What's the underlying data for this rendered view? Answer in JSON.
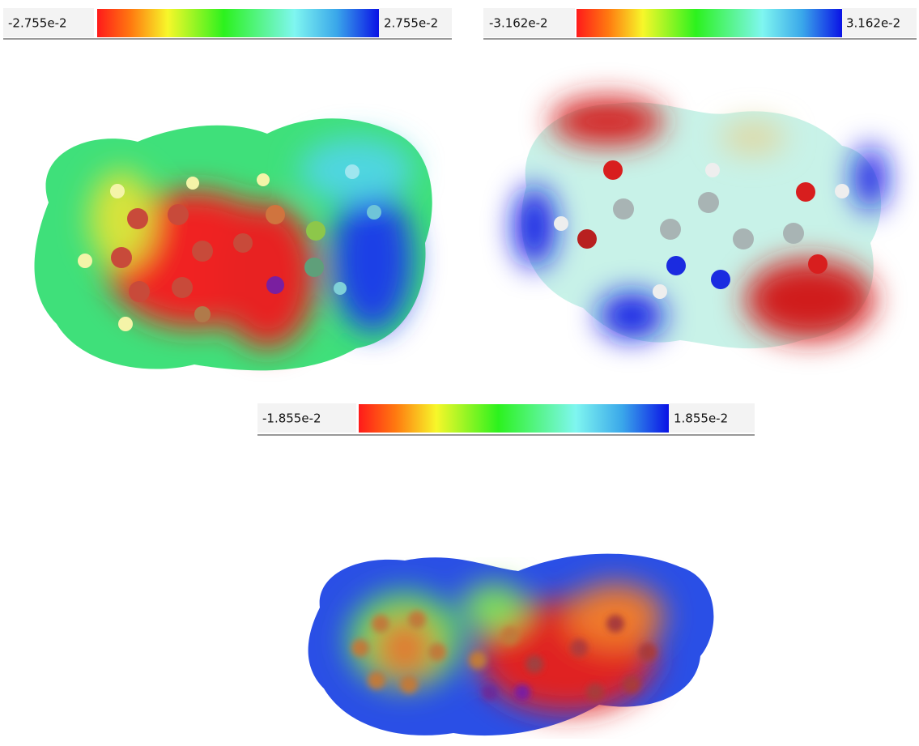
{
  "panels": [
    {
      "colorbar": {
        "min": "-2.755e-2",
        "max": "2.755e-2"
      }
    },
    {
      "colorbar": {
        "min": "-3.162e-2",
        "max": "3.162e-2"
      }
    },
    {
      "colorbar": {
        "min": "-1.855e-2",
        "max": "1.855e-2"
      }
    }
  ]
}
